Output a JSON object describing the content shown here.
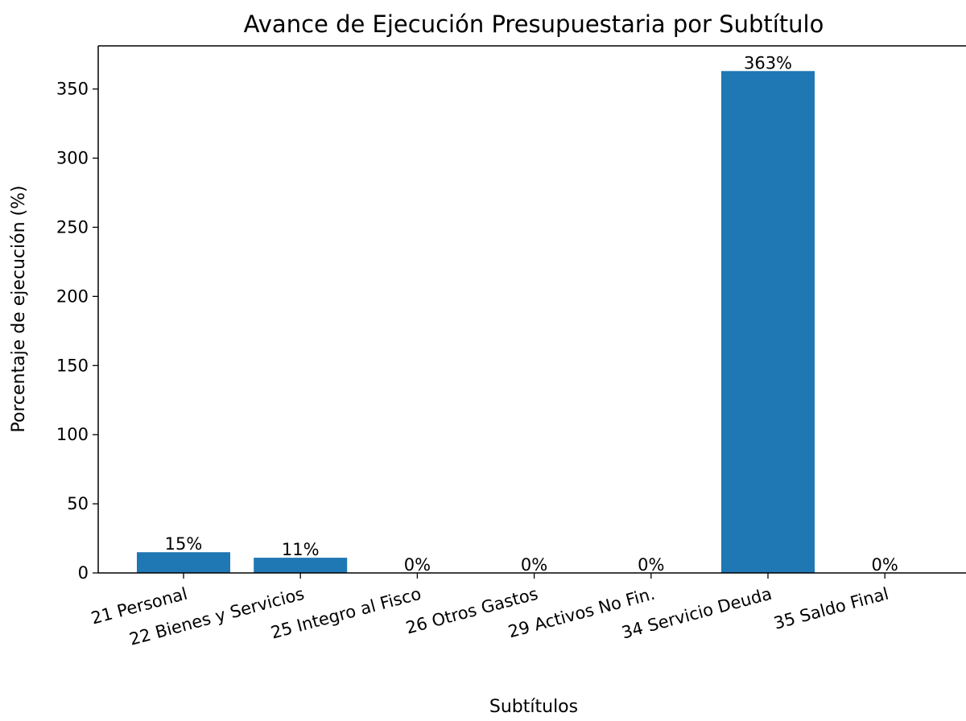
{
  "chart_data": {
    "type": "bar",
    "title": "Avance de Ejecución Presupuestaria por Subtítulo",
    "xlabel": "Subtítulos",
    "ylabel": "Porcentaje de ejecución (%)",
    "categories": [
      "21 Personal",
      "22 Bienes y Servicios",
      "25 Integro al Fisco",
      "26 Otros Gastos",
      "29 Activos No Fin.",
      "34 Servicio Deuda",
      "35 Saldo Final"
    ],
    "values": [
      15,
      11,
      0,
      0,
      0,
      363,
      0
    ],
    "data_labels": [
      "15%",
      "11%",
      "0%",
      "0%",
      "0%",
      "363%",
      "0%"
    ],
    "y_ticks": [
      0,
      50,
      100,
      150,
      200,
      250,
      300,
      350
    ],
    "ylim": [
      0,
      381.2
    ],
    "bar_color": "#1f77b4",
    "grid": false,
    "legend": "none"
  }
}
